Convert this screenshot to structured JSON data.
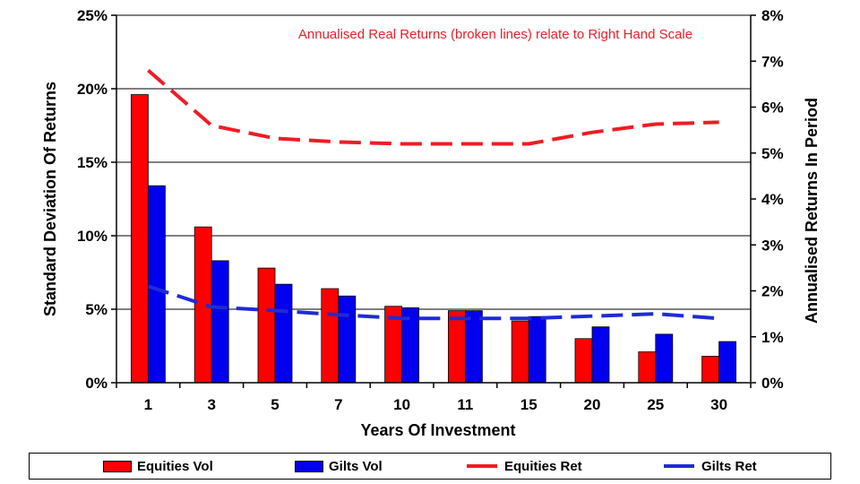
{
  "chart_data": {
    "type": "bar",
    "annotation": "Annualised Real Returns (broken lines) relate to Right Hand Scale",
    "xlabel": "Years Of Investment",
    "ylabel": "Standard Deviation Of Returns",
    "y2label": "Annualised Returns In Period",
    "categories": [
      "1",
      "3",
      "5",
      "7",
      "10",
      "11",
      "15",
      "20",
      "25",
      "30"
    ],
    "ylim": [
      0,
      25
    ],
    "yticks": [
      "0%",
      "5%",
      "10%",
      "15%",
      "20%",
      "25%"
    ],
    "y2lim": [
      0,
      8
    ],
    "y2ticks": [
      "0%",
      "1%",
      "2%",
      "3%",
      "4%",
      "5%",
      "6%",
      "7%",
      "8%"
    ],
    "grid": true,
    "legend_position": "bottom",
    "series": [
      {
        "name": "Equities Vol",
        "type": "bar",
        "axis": "left",
        "color": "#ff0000",
        "values": [
          19.6,
          10.6,
          7.8,
          6.4,
          5.2,
          4.9,
          4.2,
          3.0,
          2.1,
          1.8
        ]
      },
      {
        "name": "Gilts Vol",
        "type": "bar",
        "axis": "left",
        "color": "#0000ee",
        "values": [
          13.4,
          8.3,
          6.7,
          5.9,
          5.1,
          4.9,
          4.5,
          3.8,
          3.3,
          2.8
        ]
      },
      {
        "name": "Equities Ret",
        "type": "line",
        "dashed": true,
        "axis": "right",
        "color": "#ee1c25",
        "values": [
          6.8,
          5.6,
          5.32,
          5.24,
          5.2,
          5.2,
          5.2,
          5.45,
          5.63,
          5.67
        ]
      },
      {
        "name": "Gilts Ret",
        "type": "line",
        "dashed": true,
        "axis": "right",
        "color": "#1f2bd6",
        "values": [
          2.1,
          1.65,
          1.57,
          1.48,
          1.4,
          1.4,
          1.4,
          1.45,
          1.5,
          1.4
        ]
      }
    ]
  }
}
